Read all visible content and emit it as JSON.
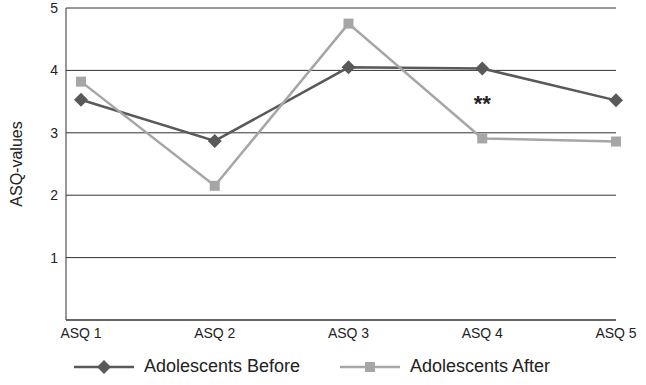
{
  "chart_data": {
    "type": "line",
    "y_label": "ASQ-values",
    "categories": [
      "ASQ 1",
      "ASQ 2",
      "ASQ 3",
      "ASQ 4",
      "ASQ 5"
    ],
    "series": [
      {
        "name": "Adolescents Before",
        "color": "#595959",
        "marker": "diamond",
        "values": [
          3.53,
          2.87,
          4.05,
          4.03,
          3.52
        ]
      },
      {
        "name": "Adolescents After",
        "color": "#a6a6a6",
        "marker": "square",
        "values": [
          3.82,
          2.15,
          4.75,
          2.91,
          2.86
        ]
      }
    ],
    "ylim": [
      0,
      5
    ],
    "yticks": [
      1,
      2,
      3,
      4,
      5
    ],
    "grid": true,
    "legend": "bottom",
    "annotations": [
      {
        "text": "**",
        "category": "ASQ 4"
      }
    ]
  }
}
